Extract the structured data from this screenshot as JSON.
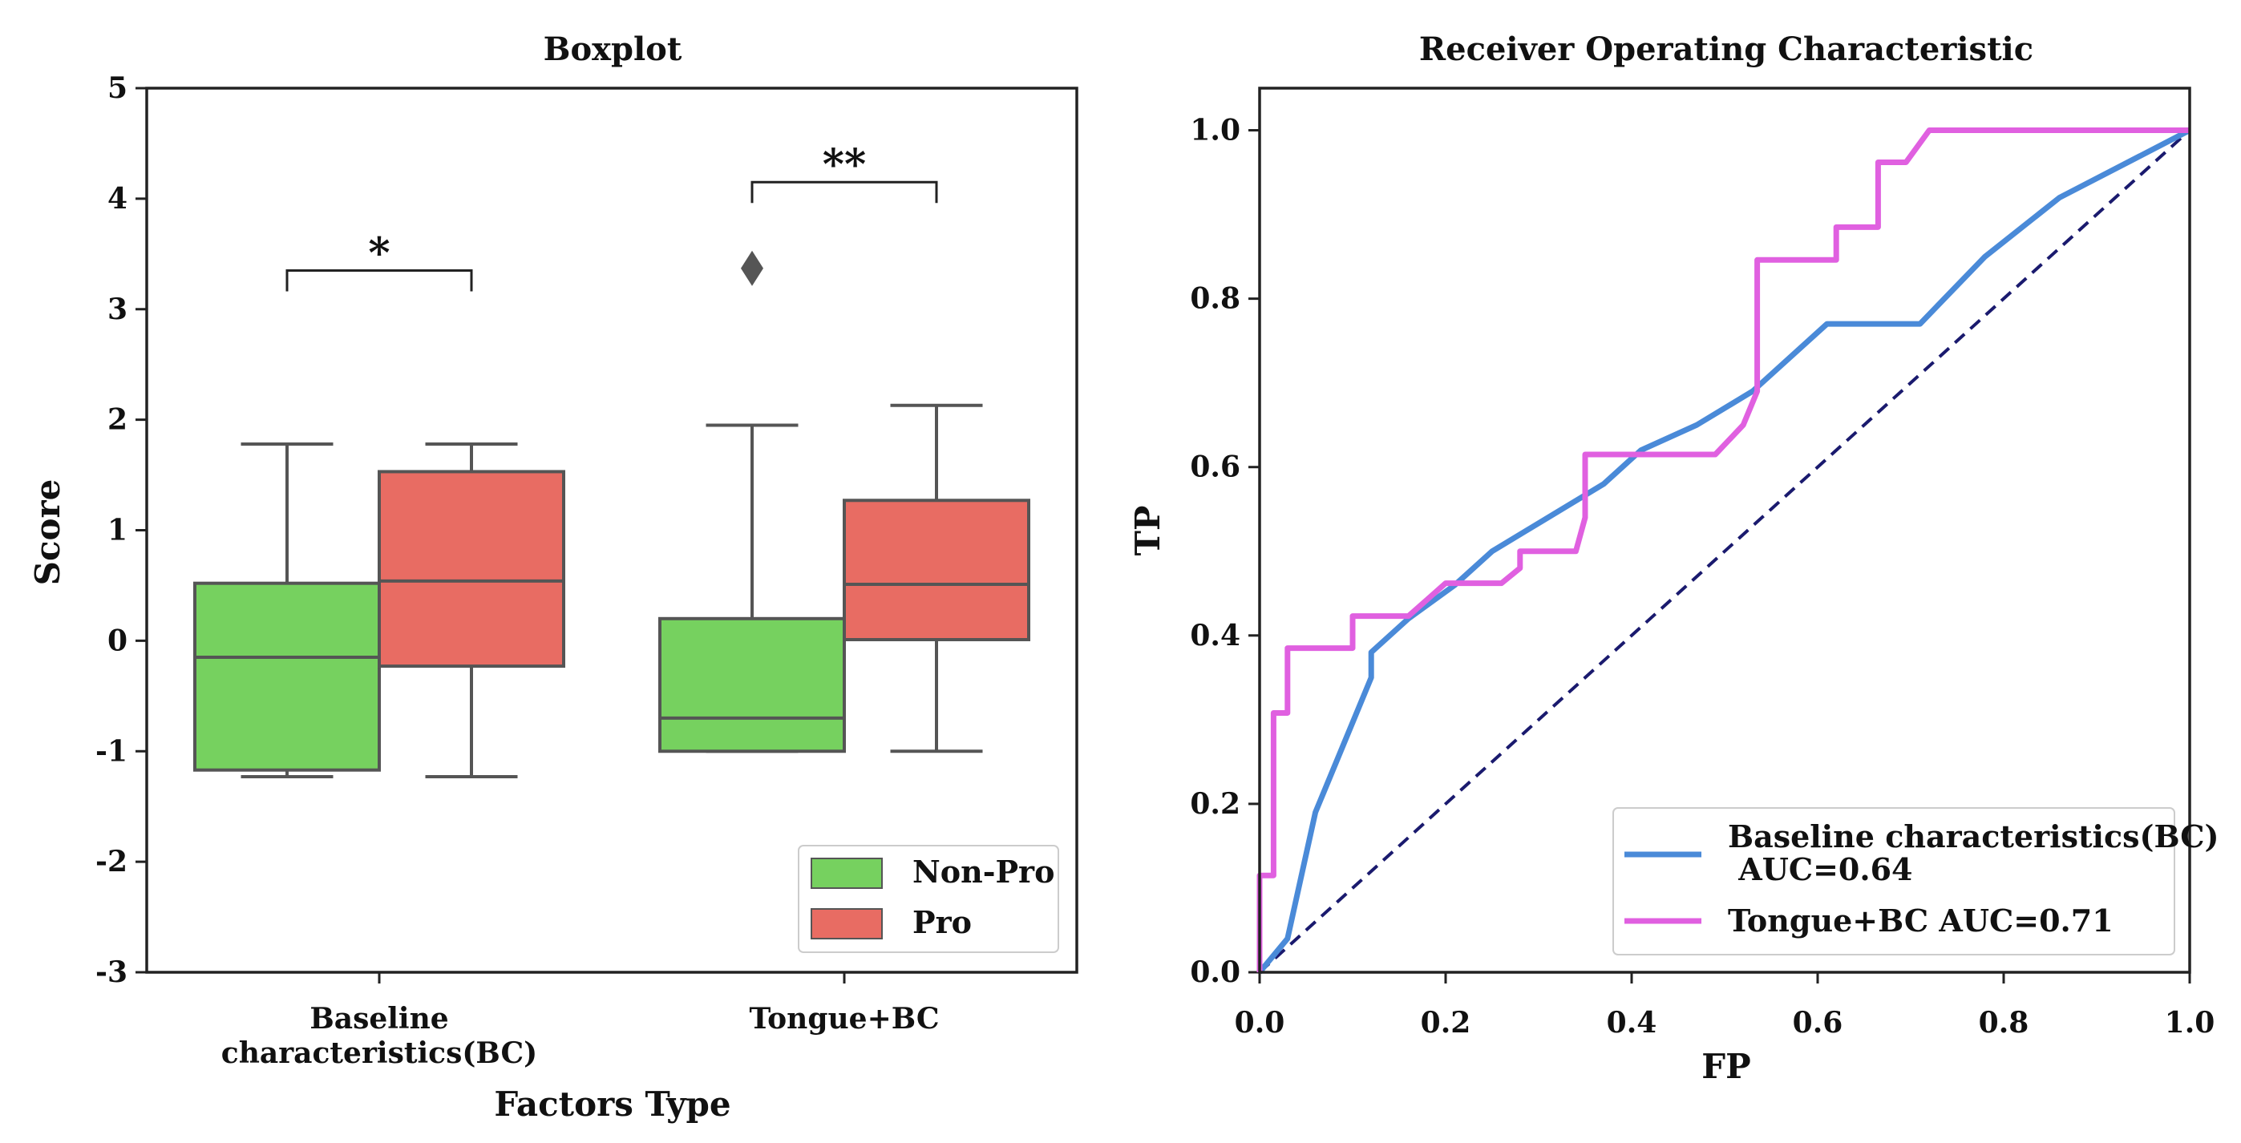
{
  "chart_data": [
    {
      "type": "boxplot",
      "title": "Boxplot",
      "xlabel": "Factors Type",
      "ylabel": "Score",
      "ylim": [
        -3,
        5
      ],
      "yticks": [
        5,
        4,
        3,
        2,
        1,
        0,
        -1,
        -2,
        -3
      ],
      "ytick_labels": [
        "5",
        "4",
        "3",
        "2",
        "1",
        "0",
        "-1",
        "-2",
        "-3"
      ],
      "categories": [
        {
          "label_lines": [
            "Baseline",
            "characteristics(BC)"
          ]
        },
        {
          "label_lines": [
            "Tongue+BC"
          ]
        }
      ],
      "series": [
        {
          "name": "Non-Pro",
          "color": "#76d15f",
          "boxes": [
            {
              "whisker_low": -1.23,
              "q1": -1.17,
              "median": -0.15,
              "q3": 0.52,
              "whisker_high": 1.78,
              "outliers": []
            },
            {
              "whisker_low": -1.0,
              "q1": -1.0,
              "median": -0.7,
              "q3": 0.2,
              "whisker_high": 1.95,
              "outliers": [
                3.37
              ]
            }
          ]
        },
        {
          "name": "Pro",
          "color": "#e86c63",
          "boxes": [
            {
              "whisker_low": -1.23,
              "q1": -0.23,
              "median": 0.54,
              "q3": 1.53,
              "whisker_high": 1.78,
              "outliers": []
            },
            {
              "whisker_low": -1.0,
              "q1": 0.01,
              "median": 0.51,
              "q3": 1.27,
              "whisker_high": 2.13,
              "outliers": []
            }
          ]
        }
      ],
      "significance": [
        {
          "category_index": 0,
          "y": 3.35,
          "label": "*"
        },
        {
          "category_index": 1,
          "y": 4.15,
          "label": "**"
        }
      ],
      "legend": {
        "position": "lower-right",
        "entries": [
          "Non-Pro",
          "Pro"
        ]
      }
    },
    {
      "type": "line",
      "title": "Receiver Operating Characteristic",
      "xlabel": "FP",
      "ylabel": "TP",
      "xlim": [
        0.0,
        1.0
      ],
      "ylim": [
        0.0,
        1.05
      ],
      "xticks": [
        0.0,
        0.2,
        0.4,
        0.6,
        0.8,
        1.0
      ],
      "xtick_labels": [
        "0.0",
        "0.2",
        "0.4",
        "0.6",
        "0.8",
        "1.0"
      ],
      "yticks": [
        0.0,
        0.2,
        0.4,
        0.6,
        0.8,
        1.0
      ],
      "ytick_labels": [
        "0.0",
        "0.2",
        "0.4",
        "0.6",
        "0.8",
        "1.0"
      ],
      "series": [
        {
          "name": "Baseline characteristics(BC) AUC=0.64",
          "legend_lines": [
            "Baseline characteristics(BC)",
            " AUC=0.64"
          ],
          "color": "#4a8ad8",
          "x": [
            0.0,
            0.0,
            0.03,
            0.06,
            0.09,
            0.12,
            0.12,
            0.16,
            0.21,
            0.25,
            0.31,
            0.37,
            0.41,
            0.47,
            0.53,
            0.61,
            0.71,
            0.78,
            0.86,
            1.0
          ],
          "y": [
            0.0,
            0.0,
            0.04,
            0.19,
            0.27,
            0.35,
            0.38,
            0.42,
            0.46,
            0.5,
            0.54,
            0.58,
            0.62,
            0.65,
            0.69,
            0.77,
            0.77,
            0.85,
            0.92,
            1.0
          ]
        },
        {
          "name": "Tongue+BC AUC=0.71",
          "legend_lines": [
            "Tongue+BC AUC=0.71"
          ],
          "color": "#e060e0",
          "x": [
            0.0,
            0.0,
            0.015,
            0.015,
            0.03,
            0.03,
            0.1,
            0.1,
            0.16,
            0.2,
            0.26,
            0.28,
            0.28,
            0.34,
            0.35,
            0.35,
            0.42,
            0.49,
            0.52,
            0.535,
            0.535,
            0.62,
            0.62,
            0.665,
            0.665,
            0.695,
            0.72,
            1.0
          ],
          "y": [
            0.0,
            0.115,
            0.115,
            0.308,
            0.308,
            0.385,
            0.385,
            0.423,
            0.423,
            0.462,
            0.462,
            0.48,
            0.5,
            0.5,
            0.54,
            0.615,
            0.615,
            0.615,
            0.65,
            0.69,
            0.846,
            0.846,
            0.885,
            0.885,
            0.962,
            0.962,
            1.0,
            1.0
          ]
        },
        {
          "name": "chance",
          "color": "#1a1a6e",
          "dashed": true,
          "x": [
            0.0,
            1.0
          ],
          "y": [
            0.0,
            1.0
          ]
        }
      ],
      "legend": {
        "position": "lower-right"
      }
    }
  ]
}
